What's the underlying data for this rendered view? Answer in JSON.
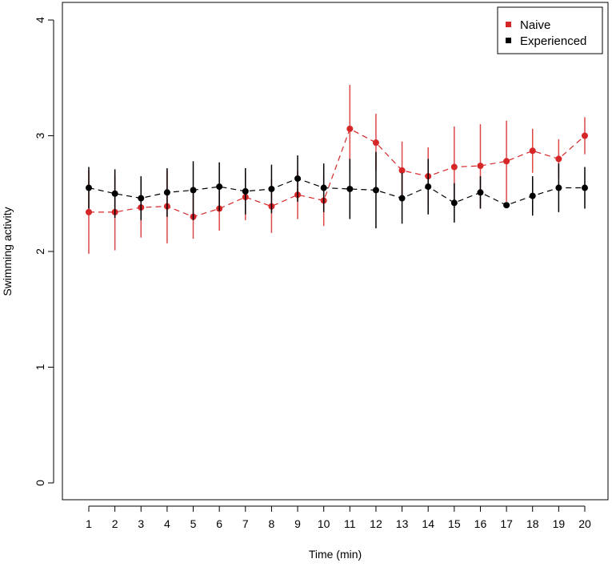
{
  "chart_data": {
    "type": "line",
    "title": "",
    "xlabel": "Time (min)",
    "ylabel": "Swimming activity",
    "x": [
      1,
      2,
      3,
      4,
      5,
      6,
      7,
      8,
      9,
      10,
      11,
      12,
      13,
      14,
      15,
      16,
      17,
      18,
      19,
      20
    ],
    "x_ticks": [
      "1",
      "2",
      "3",
      "4",
      "5",
      "6",
      "7",
      "8",
      "9",
      "10",
      "11",
      "12",
      "13",
      "14",
      "15",
      "16",
      "17",
      "18",
      "19",
      "20"
    ],
    "y_ticks": [
      "0",
      "1",
      "2",
      "3",
      "4"
    ],
    "ylim": [
      0,
      4
    ],
    "xlim": [
      1,
      20
    ],
    "grid": false,
    "legend_position": "top-right",
    "series": [
      {
        "name": "Naive",
        "color": "#d62728",
        "values": [
          2.34,
          2.34,
          2.38,
          2.39,
          2.3,
          2.37,
          2.47,
          2.39,
          2.49,
          2.44,
          3.06,
          2.94,
          2.7,
          2.65,
          2.73,
          2.74,
          2.78,
          2.87,
          2.8,
          3.0
        ],
        "lower": [
          1.98,
          2.01,
          2.12,
          2.07,
          2.11,
          2.18,
          2.27,
          2.16,
          2.28,
          2.22,
          2.7,
          2.7,
          2.47,
          2.4,
          2.38,
          2.37,
          2.43,
          2.68,
          2.64,
          2.84
        ],
        "upper": [
          2.7,
          2.66,
          2.62,
          2.7,
          2.5,
          2.57,
          2.68,
          2.62,
          2.7,
          2.66,
          3.44,
          3.19,
          2.95,
          2.9,
          3.08,
          3.1,
          3.13,
          3.06,
          2.97,
          3.16
        ]
      },
      {
        "name": "Experienced",
        "color": "#000000",
        "values": [
          2.55,
          2.5,
          2.46,
          2.51,
          2.53,
          2.56,
          2.52,
          2.54,
          2.63,
          2.55,
          2.54,
          2.53,
          2.46,
          2.56,
          2.42,
          2.51,
          2.4,
          2.48,
          2.55,
          2.55
        ],
        "lower": [
          2.37,
          2.29,
          2.27,
          2.3,
          2.27,
          2.35,
          2.32,
          2.33,
          2.43,
          2.34,
          2.28,
          2.2,
          2.24,
          2.32,
          2.25,
          2.37,
          2.4,
          2.31,
          2.34,
          2.37
        ],
        "upper": [
          2.73,
          2.71,
          2.65,
          2.72,
          2.78,
          2.77,
          2.72,
          2.75,
          2.83,
          2.76,
          2.8,
          2.86,
          2.68,
          2.8,
          2.59,
          2.65,
          2.4,
          2.65,
          2.76,
          2.73
        ]
      }
    ]
  }
}
